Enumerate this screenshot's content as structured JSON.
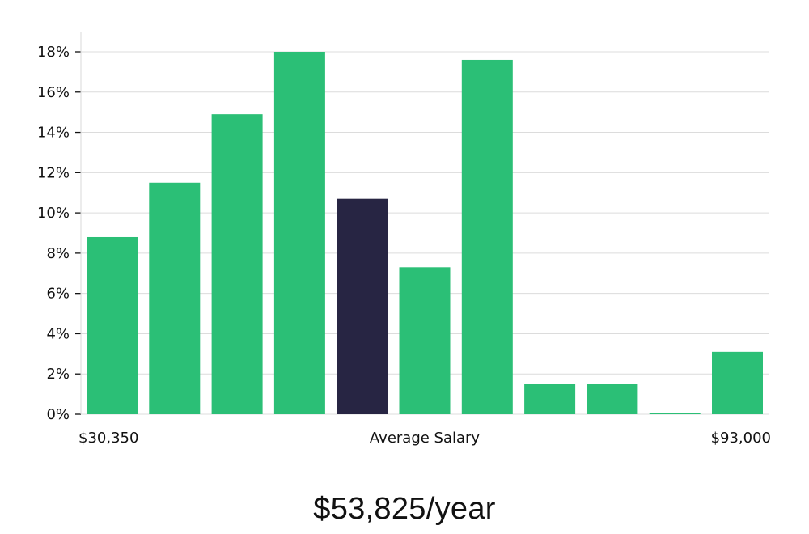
{
  "chart_data": {
    "type": "bar",
    "x_labels": {
      "left": "$30,350",
      "center": "Average Salary",
      "right": "$93,000"
    },
    "values": [
      8.8,
      11.5,
      14.9,
      18.0,
      10.7,
      7.3,
      17.6,
      1.5,
      1.5,
      0.05,
      3.1
    ],
    "highlight_index": 4,
    "ylim": [
      0,
      18
    ],
    "y_ticks": [
      0,
      2,
      4,
      6,
      8,
      10,
      12,
      14,
      16,
      18
    ],
    "y_tick_labels": [
      "0%",
      "2%",
      "4%",
      "6%",
      "8%",
      "10%",
      "12%",
      "14%",
      "16%",
      "18%"
    ],
    "grid": true,
    "colors": {
      "bar": "#2bbf76",
      "highlight": "#272543",
      "grid": "#dcdcdc",
      "axis": "#d9d9d9",
      "text": "#111111"
    }
  },
  "summary": {
    "average_salary": "$53,825/year"
  }
}
